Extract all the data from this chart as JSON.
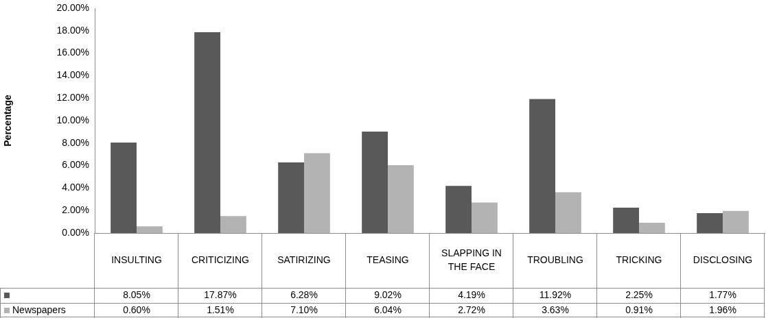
{
  "chart_data": {
    "type": "bar",
    "ylabel": "Percentage",
    "categories": [
      "INSULTING",
      "CRITICIZING",
      "SATIRIZING",
      "TEASING",
      "SLAPPING IN THE FACE",
      "TROUBLING",
      "TRICKING",
      "DISCLOSING"
    ],
    "series": [
      {
        "color": "#595959",
        "values": [
          8.05,
          17.87,
          6.28,
          9.02,
          4.19,
          11.92,
          2.25,
          1.77
        ],
        "value_labels": [
          "8.05%",
          "17.87%",
          "6.28%",
          "9.02%",
          "4.19%",
          "11.92%",
          "2.25%",
          "1.77%"
        ]
      },
      {
        "name": "Newspapers",
        "color": "#b3b3b3",
        "values": [
          0.6,
          1.51,
          7.1,
          6.04,
          2.72,
          3.63,
          0.91,
          1.96
        ],
        "value_labels": [
          "0.60%",
          "1.51%",
          "7.10%",
          "6.04%",
          "2.72%",
          "3.63%",
          "0.91%",
          "1.96%"
        ]
      }
    ],
    "ylim": [
      0,
      20
    ],
    "yticks": [
      {
        "value": 0,
        "label": "0.00%"
      },
      {
        "value": 2,
        "label": "2.00%"
      },
      {
        "value": 4,
        "label": "4.00%"
      },
      {
        "value": 6,
        "label": "6.00%"
      },
      {
        "value": 8,
        "label": "8.00%"
      },
      {
        "value": 10,
        "label": "10.00%"
      },
      {
        "value": 12,
        "label": "12.00%"
      },
      {
        "value": 14,
        "label": "14.00%"
      },
      {
        "value": 16,
        "label": "16.00%"
      },
      {
        "value": 18,
        "label": "18.00%"
      },
      {
        "value": 20,
        "label": "20.00%"
      }
    ],
    "grid": false
  }
}
